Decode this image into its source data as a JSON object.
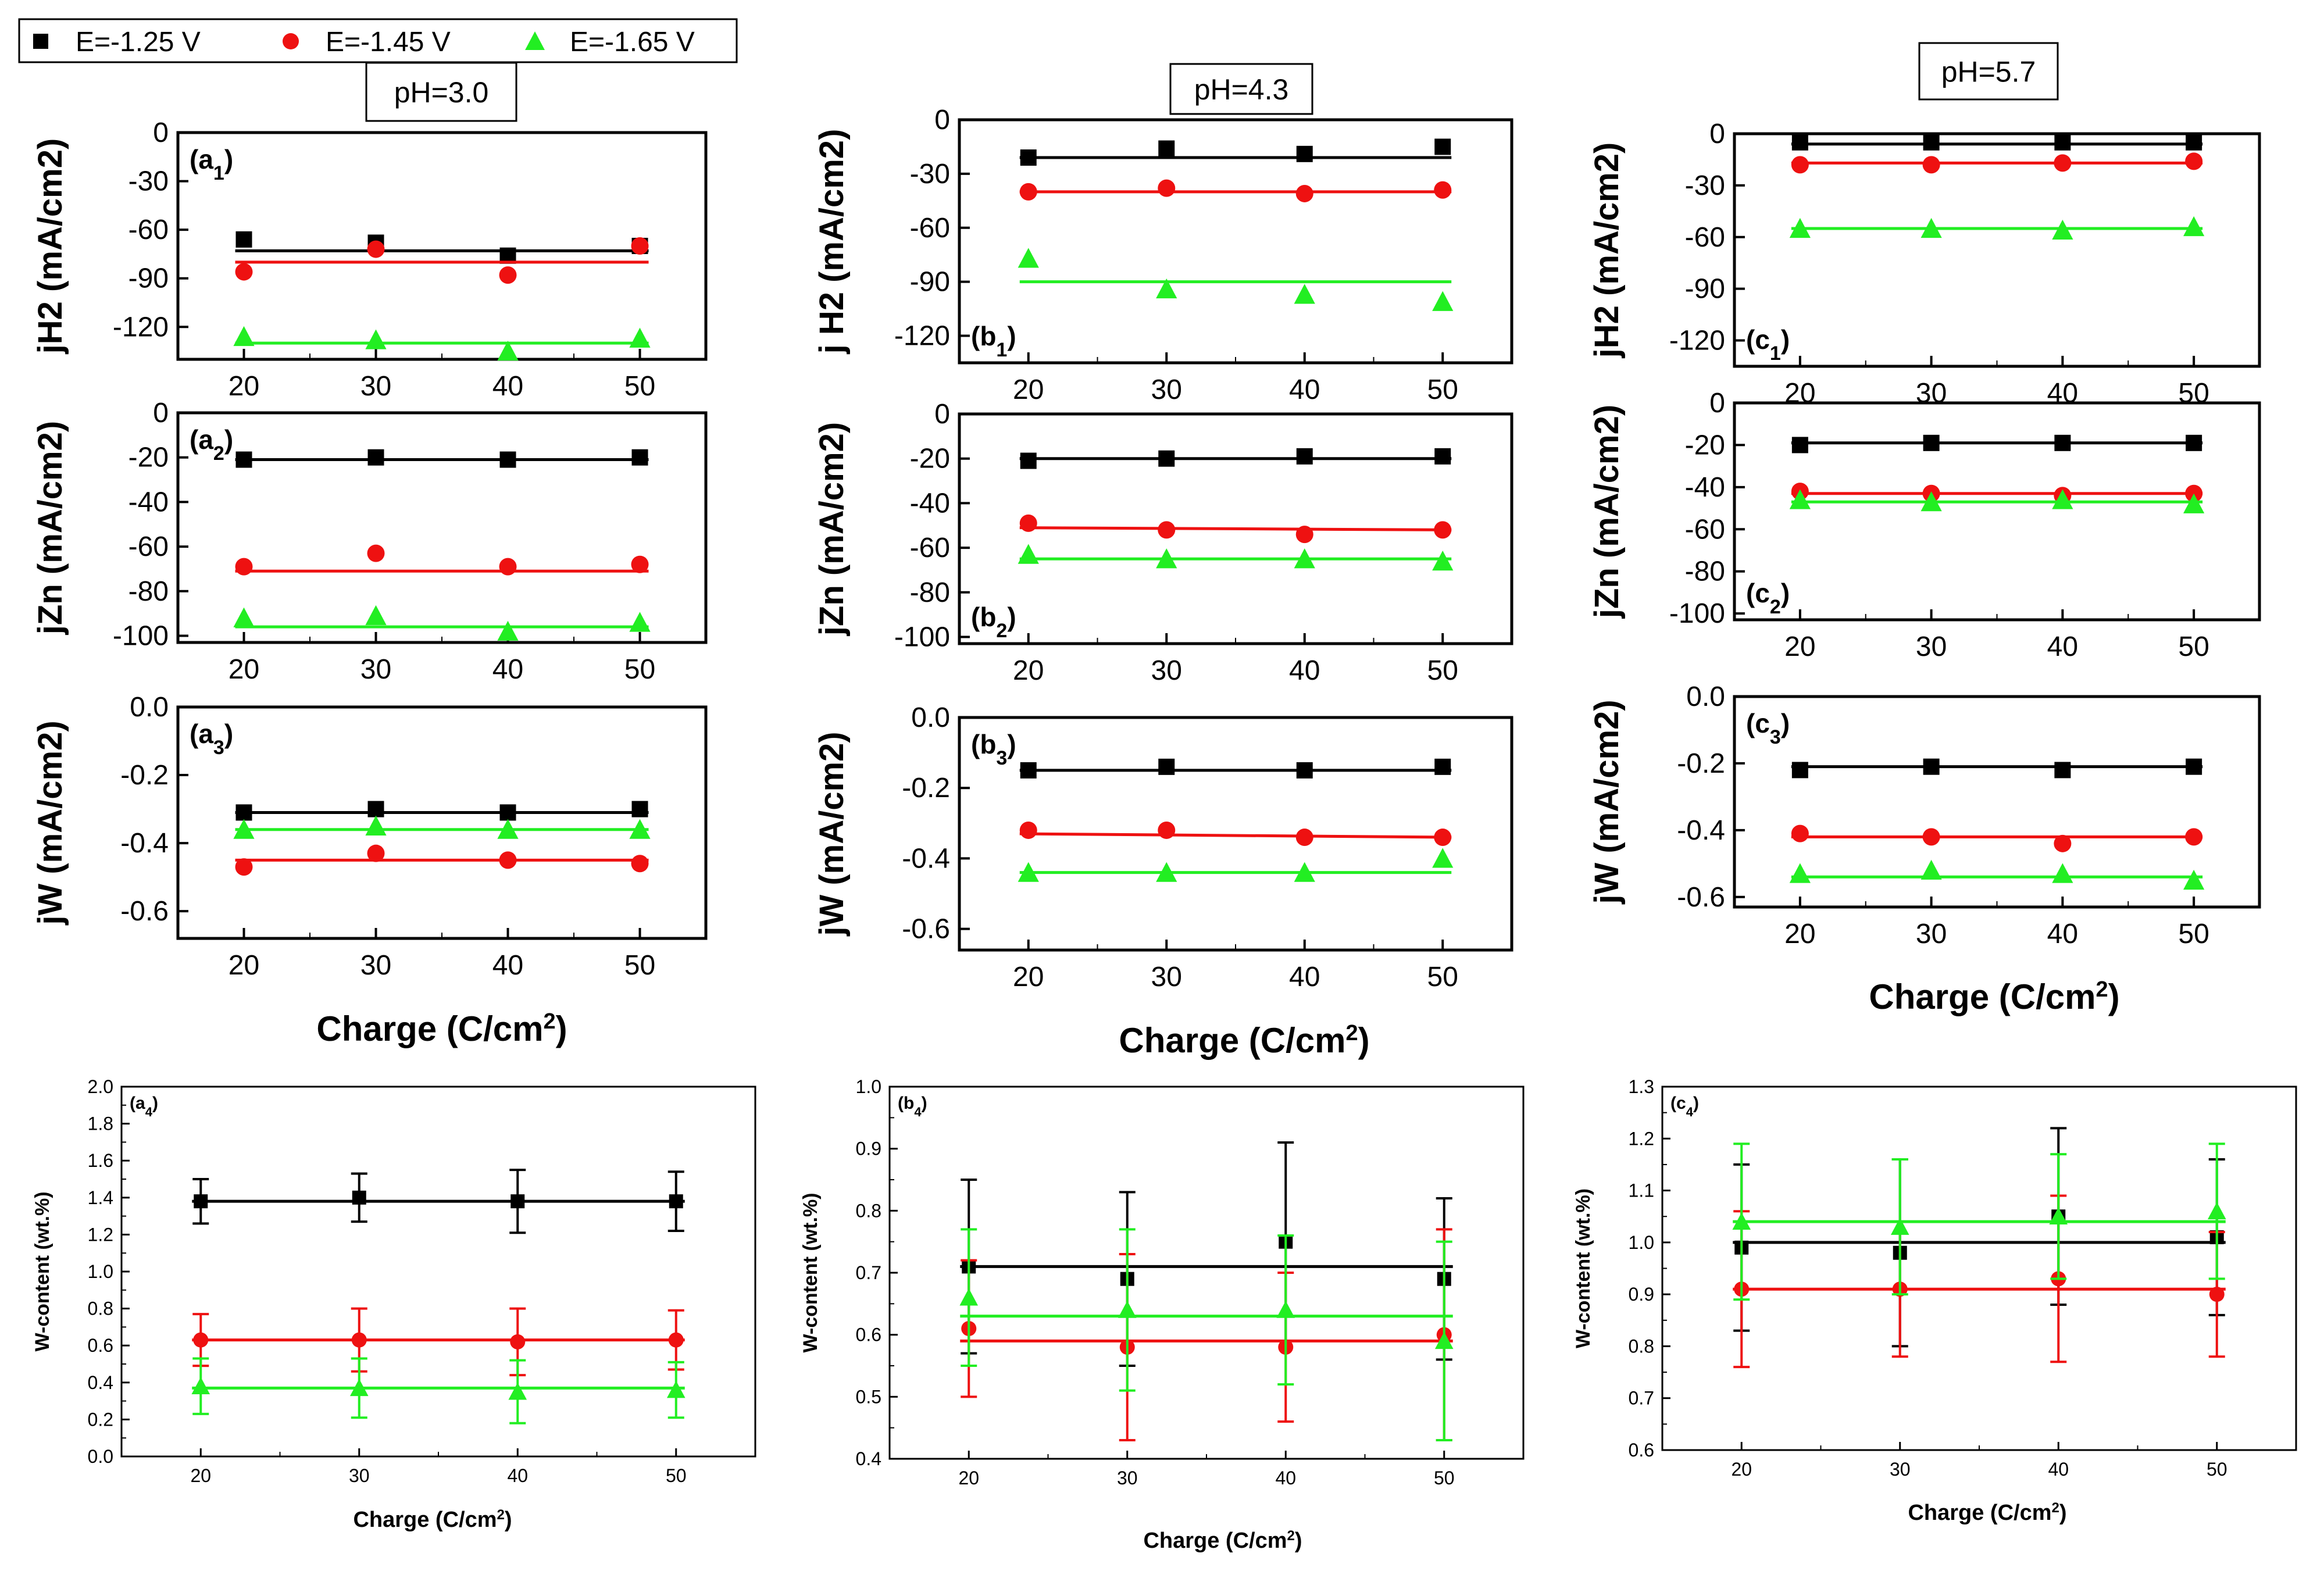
{
  "legend": [
    {
      "label": "E=-1.25 V",
      "color": "#000000",
      "marker": "square"
    },
    {
      "label": "E=-1.45 V",
      "color": "#ee1111",
      "marker": "circle"
    },
    {
      "label": "E=-1.65 V",
      "color": "#22ee22",
      "marker": "triangle"
    }
  ],
  "ph_labels": [
    "pH=3.0",
    "pH=4.3",
    "pH=5.7"
  ],
  "xlabel_prefix": "Charge (C/cm",
  "xlabel_sup": "2",
  "xlabel_suffix": ")",
  "chart_data": [
    {
      "id": "a1",
      "type": "scatter",
      "label_main": "a",
      "label_sub": "1",
      "ph": "pH=3.0",
      "ylabel": "jH2 (mA/cm2)",
      "ylim": [
        -140,
        0
      ],
      "yticks": [
        "0",
        "-30",
        "-60",
        "-90",
        "-120"
      ],
      "ytick_values": [
        0,
        -30,
        -60,
        -90,
        -120
      ],
      "x": [
        20,
        30,
        40,
        50
      ],
      "xlim": [
        15,
        55
      ],
      "xticks": [
        "20",
        "30",
        "40",
        "50"
      ],
      "series": [
        {
          "name": "E=-1.25 V",
          "values": [
            -66,
            -68,
            -76,
            -70
          ],
          "fit": [
            -73,
            -73
          ]
        },
        {
          "name": "E=-1.45 V",
          "values": [
            -86,
            -72,
            -88,
            -70
          ],
          "fit": [
            -80,
            -80
          ]
        },
        {
          "name": "E=-1.65 V",
          "values": [
            -126,
            -128,
            -135,
            -127
          ],
          "fit": [
            -130,
            -130
          ]
        }
      ]
    },
    {
      "id": "a2",
      "type": "scatter",
      "label_main": "a",
      "label_sub": "2",
      "ph": "pH=3.0",
      "ylabel": "jZn (mA/cm2)",
      "ylim": [
        -103,
        0
      ],
      "yticks": [
        "0",
        "-20",
        "-40",
        "-60",
        "-80",
        "-100"
      ],
      "ytick_values": [
        0,
        -20,
        -40,
        -60,
        -80,
        -100
      ],
      "x": [
        20,
        30,
        40,
        50
      ],
      "xlim": [
        15,
        55
      ],
      "xticks": [
        "20",
        "30",
        "40",
        "50"
      ],
      "series": [
        {
          "name": "E=-1.25 V",
          "values": [
            -21,
            -20,
            -21,
            -20
          ],
          "fit": [
            -21,
            -21
          ]
        },
        {
          "name": "E=-1.45 V",
          "values": [
            -69,
            -63,
            -69,
            -68
          ],
          "fit": [
            -71,
            -71
          ]
        },
        {
          "name": "E=-1.65 V",
          "values": [
            -92,
            -91,
            -98,
            -94
          ],
          "fit": [
            -96,
            -96
          ]
        }
      ]
    },
    {
      "id": "a3",
      "type": "scatter",
      "label_main": "a",
      "label_sub": "3",
      "ph": "pH=3.0",
      "ylabel": "jW (mA/cm2)",
      "ylim": [
        -0.68,
        0
      ],
      "yticks": [
        "0.0",
        "-0.2",
        "-0.4",
        "-0.6"
      ],
      "ytick_values": [
        0,
        -0.2,
        -0.4,
        -0.6
      ],
      "x": [
        20,
        30,
        40,
        50
      ],
      "xlim": [
        15,
        55
      ],
      "xticks": [
        "20",
        "30",
        "40",
        "50"
      ],
      "series": [
        {
          "name": "E=-1.25 V",
          "values": [
            -0.31,
            -0.3,
            -0.31,
            -0.3
          ],
          "fit": [
            -0.31,
            -0.31
          ]
        },
        {
          "name": "E=-1.45 V",
          "values": [
            -0.47,
            -0.43,
            -0.45,
            -0.46
          ],
          "fit": [
            -0.45,
            -0.45
          ]
        },
        {
          "name": "E=-1.65 V",
          "values": [
            -0.36,
            -0.35,
            -0.36,
            -0.36
          ],
          "fit": [
            -0.36,
            -0.36
          ]
        }
      ]
    },
    {
      "id": "b1",
      "type": "scatter",
      "label_main": "b",
      "label_sub": "1",
      "ph": "pH=4.3",
      "ylabel": "j H2 (mA/cm2)",
      "ylim": [
        -135,
        0
      ],
      "yticks": [
        "0",
        "-30",
        "-60",
        "-90",
        "-120"
      ],
      "ytick_values": [
        0,
        -30,
        -60,
        -90,
        -120
      ],
      "x": [
        20,
        30,
        40,
        50
      ],
      "xlim": [
        15,
        55
      ],
      "xticks": [
        "20",
        "30",
        "40",
        "50"
      ],
      "series": [
        {
          "name": "E=-1.25 V",
          "values": [
            -21,
            -16,
            -19,
            -15
          ],
          "fit": [
            -21,
            -21
          ]
        },
        {
          "name": "E=-1.45 V",
          "values": [
            -40,
            -38,
            -41,
            -39
          ],
          "fit": [
            -40,
            -40
          ]
        },
        {
          "name": "E=-1.65 V",
          "values": [
            -77,
            -94,
            -97,
            -101
          ],
          "fit": [
            -90,
            -90
          ]
        }
      ]
    },
    {
      "id": "b2",
      "type": "scatter",
      "label_main": "b",
      "label_sub": "2",
      "ph": "pH=4.3",
      "ylabel": "jZn (mA/cm2)",
      "ylim": [
        -103,
        0
      ],
      "yticks": [
        "0",
        "-20",
        "-40",
        "-60",
        "-80",
        "-100"
      ],
      "ytick_values": [
        0,
        -20,
        -40,
        -60,
        -80,
        -100
      ],
      "x": [
        20,
        30,
        40,
        50
      ],
      "xlim": [
        15,
        55
      ],
      "xticks": [
        "20",
        "30",
        "40",
        "50"
      ],
      "series": [
        {
          "name": "E=-1.25 V",
          "values": [
            -21,
            -20,
            -19,
            -19
          ],
          "fit": [
            -20,
            -20
          ]
        },
        {
          "name": "E=-1.45 V",
          "values": [
            -49,
            -52,
            -54,
            -52
          ],
          "fit": [
            -51,
            -52
          ]
        },
        {
          "name": "E=-1.65 V",
          "values": [
            -63,
            -65,
            -65,
            -66
          ],
          "fit": [
            -65,
            -65
          ]
        }
      ]
    },
    {
      "id": "b3",
      "type": "scatter",
      "label_main": "b",
      "label_sub": "3",
      "ph": "pH=4.3",
      "ylabel": "jW (mA/cm2)",
      "ylim": [
        -0.66,
        0
      ],
      "yticks": [
        "0.0",
        "-0.2",
        "-0.4",
        "-0.6"
      ],
      "ytick_values": [
        0,
        -0.2,
        -0.4,
        -0.6
      ],
      "x": [
        20,
        30,
        40,
        50
      ],
      "xlim": [
        15,
        55
      ],
      "xticks": [
        "20",
        "30",
        "40",
        "50"
      ],
      "series": [
        {
          "name": "E=-1.25 V",
          "values": [
            -0.15,
            -0.14,
            -0.15,
            -0.14
          ],
          "fit": [
            -0.15,
            -0.15
          ]
        },
        {
          "name": "E=-1.45 V",
          "values": [
            -0.32,
            -0.32,
            -0.34,
            -0.34
          ],
          "fit": [
            -0.33,
            -0.34
          ]
        },
        {
          "name": "E=-1.65 V",
          "values": [
            -0.44,
            -0.44,
            -0.44,
            -0.4
          ],
          "fit": [
            -0.44,
            -0.44
          ]
        }
      ]
    },
    {
      "id": "c1",
      "type": "scatter",
      "label_main": "c",
      "label_sub": "1",
      "ph": "pH=5.7",
      "ylabel": "jH2 (mA/cm2)",
      "ylim": [
        -135,
        0
      ],
      "yticks": [
        "0",
        "-30",
        "-60",
        "-90",
        "-120"
      ],
      "ytick_values": [
        0,
        -30,
        -60,
        -90,
        -120
      ],
      "x": [
        20,
        30,
        40,
        50
      ],
      "xlim": [
        15,
        55
      ],
      "xticks": [
        "20",
        "30",
        "40",
        "50"
      ],
      "series": [
        {
          "name": "E=-1.25 V",
          "values": [
            -5,
            -5,
            -5,
            -5
          ],
          "fit": [
            -6,
            -6
          ]
        },
        {
          "name": "E=-1.45 V",
          "values": [
            -18,
            -18,
            -17,
            -16
          ],
          "fit": [
            -17,
            -17
          ]
        },
        {
          "name": "E=-1.65 V",
          "values": [
            -55,
            -55,
            -56,
            -54
          ],
          "fit": [
            -55,
            -55
          ]
        }
      ]
    },
    {
      "id": "c2",
      "type": "scatter",
      "label_main": "c",
      "label_sub": "2",
      "ph": "pH=5.7",
      "ylabel": "jZn (mA/cm2)",
      "ylim": [
        -103,
        0
      ],
      "yticks": [
        "0",
        "-20",
        "-40",
        "-60",
        "-80",
        "-100"
      ],
      "ytick_values": [
        0,
        -20,
        -40,
        -60,
        -80,
        -100
      ],
      "x": [
        20,
        30,
        40,
        50
      ],
      "xlim": [
        15,
        55
      ],
      "xticks": [
        "20",
        "30",
        "40",
        "50"
      ],
      "series": [
        {
          "name": "E=-1.25 V",
          "values": [
            -20,
            -19,
            -19,
            -19
          ],
          "fit": [
            -19,
            -19
          ]
        },
        {
          "name": "E=-1.45 V",
          "values": [
            -42,
            -43,
            -44,
            -43
          ],
          "fit": [
            -43,
            -43
          ]
        },
        {
          "name": "E=-1.65 V",
          "values": [
            -46,
            -47,
            -46,
            -48
          ],
          "fit": [
            -47,
            -47
          ]
        }
      ]
    },
    {
      "id": "c3",
      "type": "scatter",
      "label_main": "c",
      "label_sub": "3",
      "ph": "pH=5.7",
      "ylabel": "jW (mA/cm2)",
      "ylim": [
        -0.63,
        0
      ],
      "yticks": [
        "0.0",
        "-0.2",
        "-0.4",
        "-0.6"
      ],
      "ytick_values": [
        0,
        -0.2,
        -0.4,
        -0.6
      ],
      "x": [
        20,
        30,
        40,
        50
      ],
      "xlim": [
        15,
        55
      ],
      "xticks": [
        "20",
        "30",
        "40",
        "50"
      ],
      "series": [
        {
          "name": "E=-1.25 V",
          "values": [
            -0.22,
            -0.21,
            -0.22,
            -0.21
          ],
          "fit": [
            -0.21,
            -0.21
          ]
        },
        {
          "name": "E=-1.45 V",
          "values": [
            -0.41,
            -0.42,
            -0.44,
            -0.42
          ],
          "fit": [
            -0.42,
            -0.42
          ]
        },
        {
          "name": "E=-1.65 V",
          "values": [
            -0.53,
            -0.52,
            -0.53,
            -0.55
          ],
          "fit": [
            -0.54,
            -0.54
          ]
        }
      ]
    },
    {
      "id": "a4",
      "type": "scatter",
      "label_main": "a",
      "label_sub": "4",
      "ph": "pH=3.0",
      "ylabel": "W-content (wt.%)",
      "ylim": [
        0,
        2.0
      ],
      "yticks": [
        "0.0",
        "0.2",
        "0.4",
        "0.6",
        "0.8",
        "1.0",
        "1.2",
        "1.4",
        "1.6",
        "1.8",
        "2.0"
      ],
      "ytick_values": [
        0,
        0.2,
        0.4,
        0.6,
        0.8,
        1.0,
        1.2,
        1.4,
        1.6,
        1.8,
        2.0
      ],
      "x": [
        20,
        30,
        40,
        50
      ],
      "xlim": [
        15,
        55
      ],
      "xticks": [
        "20",
        "30",
        "40",
        "50"
      ],
      "series": [
        {
          "name": "E=-1.25 V",
          "values": [
            1.38,
            1.4,
            1.38,
            1.38
          ],
          "errors": [
            0.12,
            0.13,
            0.17,
            0.16
          ],
          "fit": [
            1.38,
            1.38
          ]
        },
        {
          "name": "E=-1.45 V",
          "values": [
            0.63,
            0.63,
            0.62,
            0.63
          ],
          "errors": [
            0.14,
            0.17,
            0.18,
            0.16
          ],
          "fit": [
            0.63,
            0.63
          ]
        },
        {
          "name": "E=-1.65 V",
          "values": [
            0.38,
            0.37,
            0.35,
            0.36
          ],
          "errors": [
            0.15,
            0.16,
            0.17,
            0.15
          ],
          "fit": [
            0.37,
            0.37
          ]
        }
      ]
    },
    {
      "id": "b4",
      "type": "scatter",
      "label_main": "b",
      "label_sub": "4",
      "ph": "pH=4.3",
      "ylabel": "W-content (wt.%)",
      "ylim": [
        0.4,
        1.0
      ],
      "yticks": [
        "0.4",
        "0.5",
        "0.6",
        "0.7",
        "0.8",
        "0.9",
        "1.0"
      ],
      "ytick_values": [
        0.4,
        0.5,
        0.6,
        0.7,
        0.8,
        0.9,
        1.0
      ],
      "x": [
        20,
        30,
        40,
        50
      ],
      "xlim": [
        15,
        55
      ],
      "xticks": [
        "20",
        "30",
        "40",
        "50"
      ],
      "series": [
        {
          "name": "E=-1.25 V",
          "values": [
            0.71,
            0.69,
            0.75,
            0.69
          ],
          "errors": [
            0.14,
            0.14,
            0.16,
            0.13
          ],
          "fit": [
            0.71,
            0.71
          ]
        },
        {
          "name": "E=-1.45 V",
          "values": [
            0.61,
            0.58,
            0.58,
            0.6
          ],
          "errors": [
            0.11,
            0.15,
            0.12,
            0.17
          ],
          "fit": [
            0.59,
            0.59
          ]
        },
        {
          "name": "E=-1.65 V",
          "values": [
            0.66,
            0.64,
            0.64,
            0.59
          ],
          "errors": [
            0.11,
            0.13,
            0.12,
            0.16
          ],
          "fit": [
            0.63,
            0.63
          ]
        }
      ]
    },
    {
      "id": "c4",
      "type": "scatter",
      "label_main": "c",
      "label_sub": "4",
      "ph": "pH=5.7",
      "ylabel": "W-content (wt.%)",
      "ylim": [
        0.6,
        1.3
      ],
      "yticks": [
        "0.6",
        "0.7",
        "0.8",
        "0.9",
        "1.0",
        "1.1",
        "1.2",
        "1.3"
      ],
      "ytick_values": [
        0.6,
        0.7,
        0.8,
        0.9,
        1.0,
        1.1,
        1.2,
        1.3
      ],
      "x": [
        20,
        30,
        40,
        50
      ],
      "xlim": [
        15,
        55
      ],
      "xticks": [
        "20",
        "30",
        "40",
        "50"
      ],
      "series": [
        {
          "name": "E=-1.25 V",
          "values": [
            0.99,
            0.98,
            1.05,
            1.01
          ],
          "errors": [
            0.16,
            0.18,
            0.17,
            0.15
          ],
          "fit": [
            1.0,
            1.0
          ]
        },
        {
          "name": "E=-1.45 V",
          "values": [
            0.91,
            0.91,
            0.93,
            0.9
          ],
          "errors": [
            0.15,
            0.13,
            0.16,
            0.12
          ],
          "fit": [
            0.91,
            0.91
          ]
        },
        {
          "name": "E=-1.65 V",
          "values": [
            1.04,
            1.03,
            1.05,
            1.06
          ],
          "errors": [
            0.15,
            0.13,
            0.12,
            0.13
          ],
          "fit": [
            1.04,
            1.04
          ]
        }
      ]
    }
  ]
}
